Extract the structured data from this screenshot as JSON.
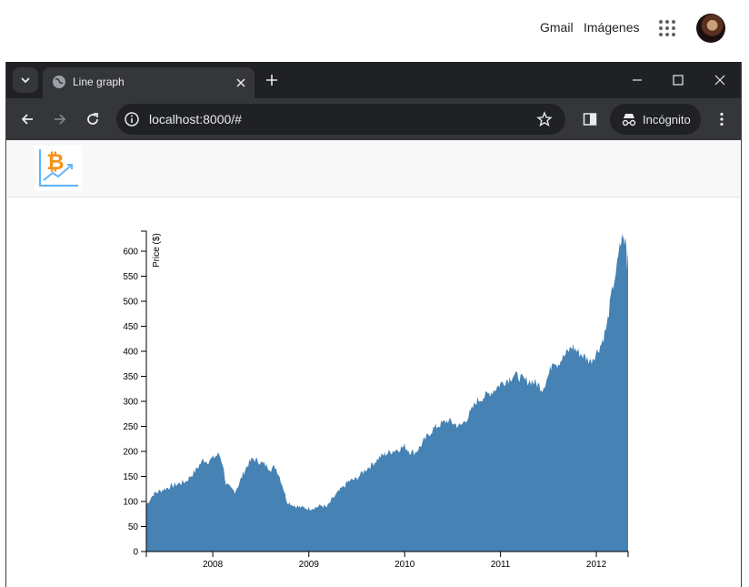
{
  "google_header": {
    "links": [
      "Gmail",
      "Imágenes"
    ],
    "apps_icon": "apps-grid-icon",
    "avatar_icon": "profile-avatar"
  },
  "browser": {
    "tab": {
      "title": "Line graph",
      "favicon": "globe-icon"
    },
    "address": {
      "url": "localhost:8000/#"
    },
    "incognito_label": "Incógnito"
  },
  "page": {
    "logo_icon": "bitcoin-chart-logo-icon",
    "colors": {
      "area_fill": "#4682b4"
    }
  },
  "chart_data": {
    "type": "area",
    "title": "",
    "xlabel": "",
    "ylabel": "Price ($)",
    "xlim": [
      "2007-04-23",
      "2012-05-01"
    ],
    "ylim": [
      0,
      640
    ],
    "x_ticks": [
      "2008",
      "2009",
      "2010",
      "2011",
      "2012"
    ],
    "y_ticks": [
      0,
      50,
      100,
      150,
      200,
      250,
      300,
      350,
      400,
      450,
      500,
      550,
      600
    ],
    "grid": false,
    "series": [
      {
        "color": "#4682b4",
        "points": [
          [
            "2007-04-23",
            93
          ],
          [
            "2007-05-20",
            115
          ],
          [
            "2007-07-01",
            125
          ],
          [
            "2007-08-10",
            133
          ],
          [
            "2007-09-20",
            140
          ],
          [
            "2007-10-25",
            160
          ],
          [
            "2007-11-25",
            183
          ],
          [
            "2007-12-15",
            180
          ],
          [
            "2008-01-10",
            190
          ],
          [
            "2008-01-25",
            195
          ],
          [
            "2008-02-08",
            175
          ],
          [
            "2008-02-20",
            135
          ],
          [
            "2008-03-10",
            125
          ],
          [
            "2008-03-25",
            120
          ],
          [
            "2008-04-10",
            135
          ],
          [
            "2008-04-25",
            155
          ],
          [
            "2008-05-15",
            175
          ],
          [
            "2008-06-01",
            185
          ],
          [
            "2008-06-25",
            180
          ],
          [
            "2008-07-20",
            172
          ],
          [
            "2008-08-10",
            165
          ],
          [
            "2008-08-25",
            170
          ],
          [
            "2008-09-08",
            155
          ],
          [
            "2008-09-25",
            128
          ],
          [
            "2008-10-10",
            100
          ],
          [
            "2008-11-05",
            92
          ],
          [
            "2008-12-01",
            88
          ],
          [
            "2009-01-01",
            86
          ],
          [
            "2009-01-25",
            88
          ],
          [
            "2009-02-20",
            92
          ],
          [
            "2009-03-10",
            88
          ],
          [
            "2009-04-01",
            105
          ],
          [
            "2009-05-01",
            123
          ],
          [
            "2009-06-01",
            140
          ],
          [
            "2009-07-01",
            145
          ],
          [
            "2009-08-01",
            162
          ],
          [
            "2009-09-01",
            175
          ],
          [
            "2009-10-01",
            190
          ],
          [
            "2009-11-10",
            200
          ],
          [
            "2009-12-10",
            205
          ],
          [
            "2010-01-01",
            210
          ],
          [
            "2010-01-20",
            200
          ],
          [
            "2010-02-10",
            198
          ],
          [
            "2010-03-01",
            210
          ],
          [
            "2010-03-25",
            228
          ],
          [
            "2010-04-20",
            245
          ],
          [
            "2010-05-20",
            255
          ],
          [
            "2010-06-15",
            262
          ],
          [
            "2010-07-10",
            255
          ],
          [
            "2010-08-01",
            250
          ],
          [
            "2010-09-01",
            270
          ],
          [
            "2010-10-01",
            300
          ],
          [
            "2010-11-01",
            310
          ],
          [
            "2010-12-01",
            320
          ],
          [
            "2011-01-01",
            335
          ],
          [
            "2011-02-01",
            345
          ],
          [
            "2011-02-20",
            352
          ],
          [
            "2011-03-10",
            350
          ],
          [
            "2011-04-01",
            342
          ],
          [
            "2011-05-01",
            340
          ],
          [
            "2011-05-20",
            335
          ],
          [
            "2011-06-10",
            325
          ],
          [
            "2011-07-05",
            355
          ],
          [
            "2011-07-20",
            385
          ],
          [
            "2011-08-05",
            375
          ],
          [
            "2011-09-01",
            390
          ],
          [
            "2011-10-01",
            410
          ],
          [
            "2011-10-20",
            400
          ],
          [
            "2011-11-15",
            390
          ],
          [
            "2011-12-10",
            380
          ],
          [
            "2011-12-30",
            395
          ],
          [
            "2012-01-20",
            415
          ],
          [
            "2012-02-10",
            450
          ],
          [
            "2012-02-25",
            505
          ],
          [
            "2012-03-10",
            545
          ],
          [
            "2012-03-20",
            570
          ],
          [
            "2012-03-30",
            605
          ],
          [
            "2012-04-05",
            620
          ],
          [
            "2012-04-10",
            635
          ],
          [
            "2012-04-17",
            610
          ],
          [
            "2012-04-22",
            630
          ],
          [
            "2012-04-27",
            575
          ],
          [
            "2012-05-01",
            600
          ]
        ]
      }
    ]
  }
}
